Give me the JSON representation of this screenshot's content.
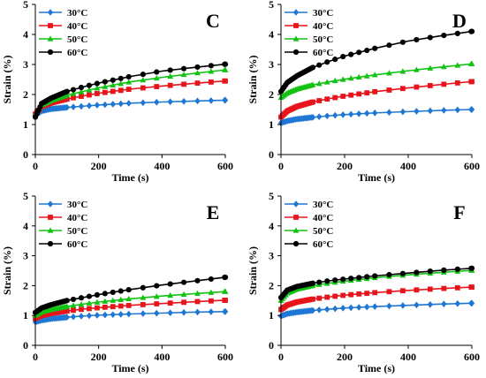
{
  "chart_data": [
    {
      "type": "line",
      "panel_label": "C",
      "xlabel": "Time (s)",
      "ylabel": "Strain (%)",
      "xlim": [
        0,
        600
      ],
      "ylim": [
        0,
        5
      ],
      "xticks": [
        0,
        200,
        400,
        600
      ],
      "yticks": [
        0,
        1,
        2,
        3,
        4,
        5
      ],
      "legend_position": "top-left",
      "series": [
        {
          "name": "30°C",
          "color": "#1f77d4",
          "marker": "diamond",
          "x": [
            0,
            20,
            50,
            100,
            150,
            200,
            300,
            400,
            500,
            600
          ],
          "y": [
            1.3,
            1.45,
            1.52,
            1.57,
            1.61,
            1.65,
            1.71,
            1.75,
            1.78,
            1.81
          ]
        },
        {
          "name": "40°C",
          "color": "#e8141c",
          "marker": "square",
          "x": [
            0,
            20,
            50,
            100,
            150,
            200,
            300,
            400,
            500,
            600
          ],
          "y": [
            1.35,
            1.6,
            1.72,
            1.85,
            1.95,
            2.04,
            2.18,
            2.28,
            2.37,
            2.45
          ]
        },
        {
          "name": "50°C",
          "color": "#12c212",
          "marker": "triangle",
          "x": [
            0,
            20,
            50,
            100,
            150,
            200,
            300,
            400,
            500,
            600
          ],
          "y": [
            1.35,
            1.65,
            1.8,
            1.98,
            2.1,
            2.22,
            2.42,
            2.57,
            2.7,
            2.82
          ]
        },
        {
          "name": "60°C",
          "color": "#000000",
          "marker": "circle",
          "x": [
            0,
            20,
            50,
            100,
            150,
            200,
            300,
            400,
            500,
            600
          ],
          "y": [
            1.25,
            1.7,
            1.88,
            2.1,
            2.25,
            2.38,
            2.6,
            2.78,
            2.9,
            3.01
          ]
        }
      ]
    },
    {
      "type": "line",
      "panel_label": "D",
      "xlabel": "Time (s)",
      "ylabel": "Strain (%)",
      "xlim": [
        0,
        600
      ],
      "ylim": [
        0,
        5
      ],
      "xticks": [
        0,
        200,
        400,
        600
      ],
      "yticks": [
        0,
        1,
        2,
        3,
        4,
        5
      ],
      "legend_position": "top-left",
      "series": [
        {
          "name": "30°C",
          "color": "#1f77d4",
          "marker": "diamond",
          "x": [
            0,
            20,
            50,
            100,
            150,
            200,
            300,
            400,
            500,
            600
          ],
          "y": [
            1.05,
            1.12,
            1.18,
            1.24,
            1.29,
            1.33,
            1.39,
            1.43,
            1.47,
            1.5
          ]
        },
        {
          "name": "40°C",
          "color": "#e8141c",
          "marker": "square",
          "x": [
            0,
            20,
            50,
            100,
            150,
            200,
            300,
            400,
            500,
            600
          ],
          "y": [
            1.25,
            1.45,
            1.6,
            1.75,
            1.86,
            1.95,
            2.1,
            2.22,
            2.33,
            2.43
          ]
        },
        {
          "name": "50°C",
          "color": "#12c212",
          "marker": "triangle",
          "x": [
            0,
            20,
            50,
            100,
            150,
            200,
            300,
            400,
            500,
            600
          ],
          "y": [
            1.9,
            2.05,
            2.18,
            2.32,
            2.42,
            2.51,
            2.66,
            2.79,
            2.91,
            3.02
          ]
        },
        {
          "name": "60°C",
          "color": "#000000",
          "marker": "circle",
          "x": [
            0,
            20,
            50,
            100,
            150,
            200,
            300,
            400,
            500,
            600
          ],
          "y": [
            2.1,
            2.4,
            2.62,
            2.9,
            3.1,
            3.28,
            3.55,
            3.78,
            3.95,
            4.1
          ]
        }
      ]
    },
    {
      "type": "line",
      "panel_label": "E",
      "xlabel": "Time (s)",
      "ylabel": "Strain (%)",
      "xlim": [
        0,
        600
      ],
      "ylim": [
        0,
        5
      ],
      "xticks": [
        0,
        200,
        400,
        600
      ],
      "yticks": [
        0,
        1,
        2,
        3,
        4,
        5
      ],
      "legend_position": "top-left",
      "series": [
        {
          "name": "30°C",
          "color": "#1f77d4",
          "marker": "diamond",
          "x": [
            0,
            20,
            50,
            100,
            150,
            200,
            300,
            400,
            500,
            600
          ],
          "y": [
            0.78,
            0.84,
            0.89,
            0.94,
            0.98,
            1.01,
            1.05,
            1.08,
            1.11,
            1.13
          ]
        },
        {
          "name": "40°C",
          "color": "#e8141c",
          "marker": "square",
          "x": [
            0,
            20,
            50,
            100,
            150,
            200,
            300,
            400,
            500,
            600
          ],
          "y": [
            0.9,
            1.0,
            1.07,
            1.15,
            1.21,
            1.26,
            1.34,
            1.4,
            1.46,
            1.51
          ]
        },
        {
          "name": "50°C",
          "color": "#12c212",
          "marker": "triangle",
          "x": [
            0,
            20,
            50,
            100,
            150,
            200,
            300,
            400,
            500,
            600
          ],
          "y": [
            1.0,
            1.12,
            1.2,
            1.3,
            1.38,
            1.45,
            1.56,
            1.65,
            1.73,
            1.8
          ]
        },
        {
          "name": "60°C",
          "color": "#000000",
          "marker": "circle",
          "x": [
            0,
            20,
            50,
            100,
            150,
            200,
            300,
            400,
            500,
            600
          ],
          "y": [
            1.1,
            1.25,
            1.36,
            1.5,
            1.6,
            1.7,
            1.87,
            2.02,
            2.15,
            2.28
          ]
        }
      ]
    },
    {
      "type": "line",
      "panel_label": "F",
      "xlabel": "Time (s)",
      "ylabel": "Strain (%)",
      "xlim": [
        0,
        600
      ],
      "ylim": [
        0,
        5
      ],
      "xticks": [
        0,
        200,
        400,
        600
      ],
      "yticks": [
        0,
        1,
        2,
        3,
        4,
        5
      ],
      "legend_position": "top-left",
      "series": [
        {
          "name": "30°C",
          "color": "#1f77d4",
          "marker": "diamond",
          "x": [
            0,
            20,
            50,
            100,
            150,
            200,
            300,
            400,
            500,
            600
          ],
          "y": [
            0.98,
            1.06,
            1.11,
            1.17,
            1.21,
            1.25,
            1.3,
            1.34,
            1.38,
            1.41
          ]
        },
        {
          "name": "40°C",
          "color": "#e8141c",
          "marker": "square",
          "x": [
            0,
            20,
            50,
            100,
            150,
            200,
            300,
            400,
            500,
            600
          ],
          "y": [
            1.2,
            1.35,
            1.45,
            1.55,
            1.62,
            1.68,
            1.77,
            1.84,
            1.9,
            1.95
          ]
        },
        {
          "name": "50°C",
          "color": "#12c212",
          "marker": "triangle",
          "x": [
            0,
            20,
            50,
            100,
            150,
            200,
            300,
            400,
            500,
            600
          ],
          "y": [
            1.5,
            1.75,
            1.88,
            2.0,
            2.08,
            2.15,
            2.27,
            2.36,
            2.44,
            2.51
          ]
        },
        {
          "name": "60°C",
          "color": "#000000",
          "marker": "circle",
          "x": [
            0,
            20,
            50,
            100,
            150,
            200,
            300,
            400,
            500,
            600
          ],
          "y": [
            1.6,
            1.85,
            1.97,
            2.08,
            2.16,
            2.22,
            2.33,
            2.42,
            2.51,
            2.58
          ]
        }
      ]
    }
  ]
}
